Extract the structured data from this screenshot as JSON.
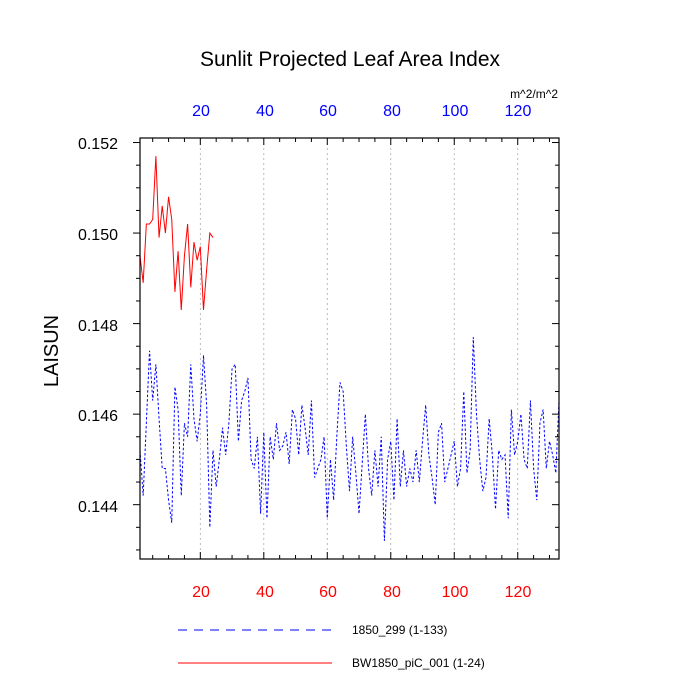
{
  "chart_data": {
    "type": "line",
    "title": "Sunlit Projected Leaf Area Index",
    "ylabel": "LAISUN",
    "xlabel": "",
    "units": "m^2/m^2",
    "xlim": [
      1,
      133
    ],
    "ylim": [
      0.1428,
      0.1521
    ],
    "y_ticks": [
      "0.144",
      "0.146",
      "0.148",
      "0.150",
      "0.152"
    ],
    "x_ticks_bottom": [
      "20",
      "40",
      "60",
      "80",
      "100",
      "120"
    ],
    "x_ticks_top": [
      "20",
      "40",
      "60",
      "80",
      "100",
      "120"
    ],
    "grid": "vertical dotted lines at top-axis ticks",
    "legend_position": "bottom",
    "colors": {
      "bottom_axis": "#ff0000",
      "top_axis": "#0000ff",
      "series_1": "#0000ff",
      "series_2": "#ff0000"
    },
    "series": [
      {
        "name": "1850_299 (1-133)",
        "color": "#0000ff",
        "dash": "dashed",
        "x_start": 1,
        "values": [
          0.1452,
          0.1442,
          0.1458,
          0.1474,
          0.1463,
          0.1471,
          0.1459,
          0.1448,
          0.1448,
          0.1441,
          0.1436,
          0.1466,
          0.1461,
          0.1442,
          0.1458,
          0.1455,
          0.1471,
          0.1459,
          0.1454,
          0.146,
          0.1473,
          0.1462,
          0.1435,
          0.1452,
          0.1444,
          0.145,
          0.1457,
          0.1451,
          0.1458,
          0.147,
          0.1471,
          0.1454,
          0.1463,
          0.1465,
          0.1468,
          0.145,
          0.1448,
          0.1455,
          0.1438,
          0.1456,
          0.1437,
          0.1455,
          0.145,
          0.1458,
          0.1452,
          0.1453,
          0.1456,
          0.1449,
          0.1461,
          0.1459,
          0.1451,
          0.1462,
          0.1457,
          0.1451,
          0.1463,
          0.1446,
          0.1448,
          0.145,
          0.1455,
          0.1437,
          0.145,
          0.1441,
          0.1455,
          0.1467,
          0.1465,
          0.1453,
          0.1443,
          0.1455,
          0.1447,
          0.1438,
          0.1449,
          0.146,
          0.1448,
          0.1442,
          0.1452,
          0.1444,
          0.1455,
          0.1432,
          0.145,
          0.1454,
          0.1441,
          0.1459,
          0.1444,
          0.1452,
          0.1444,
          0.1448,
          0.1445,
          0.1452,
          0.1445,
          0.1454,
          0.1462,
          0.1451,
          0.1446,
          0.144,
          0.1456,
          0.1458,
          0.1445,
          0.1448,
          0.1451,
          0.1454,
          0.1444,
          0.1448,
          0.1465,
          0.1447,
          0.1452,
          0.1477,
          0.146,
          0.145,
          0.1443,
          0.1446,
          0.1459,
          0.1451,
          0.1439,
          0.1452,
          0.145,
          0.1451,
          0.1437,
          0.1461,
          0.1451,
          0.1454,
          0.146,
          0.145,
          0.1448,
          0.1463,
          0.1448,
          0.1441,
          0.1458,
          0.1461,
          0.1448,
          0.1454,
          0.1451,
          0.1447,
          0.1463
        ]
      },
      {
        "name": "BW1850_piC_001 (1-24)",
        "color": "#ff0000",
        "dash": "solid",
        "x_start": 1,
        "values": [
          0.1495,
          0.1489,
          0.1502,
          0.1502,
          0.1503,
          0.1517,
          0.1499,
          0.1506,
          0.15,
          0.1508,
          0.1503,
          0.1487,
          0.1496,
          0.1483,
          0.1495,
          0.1502,
          0.1488,
          0.1498,
          0.1494,
          0.1497,
          0.1483,
          0.1492,
          0.15,
          0.1499
        ]
      }
    ]
  }
}
